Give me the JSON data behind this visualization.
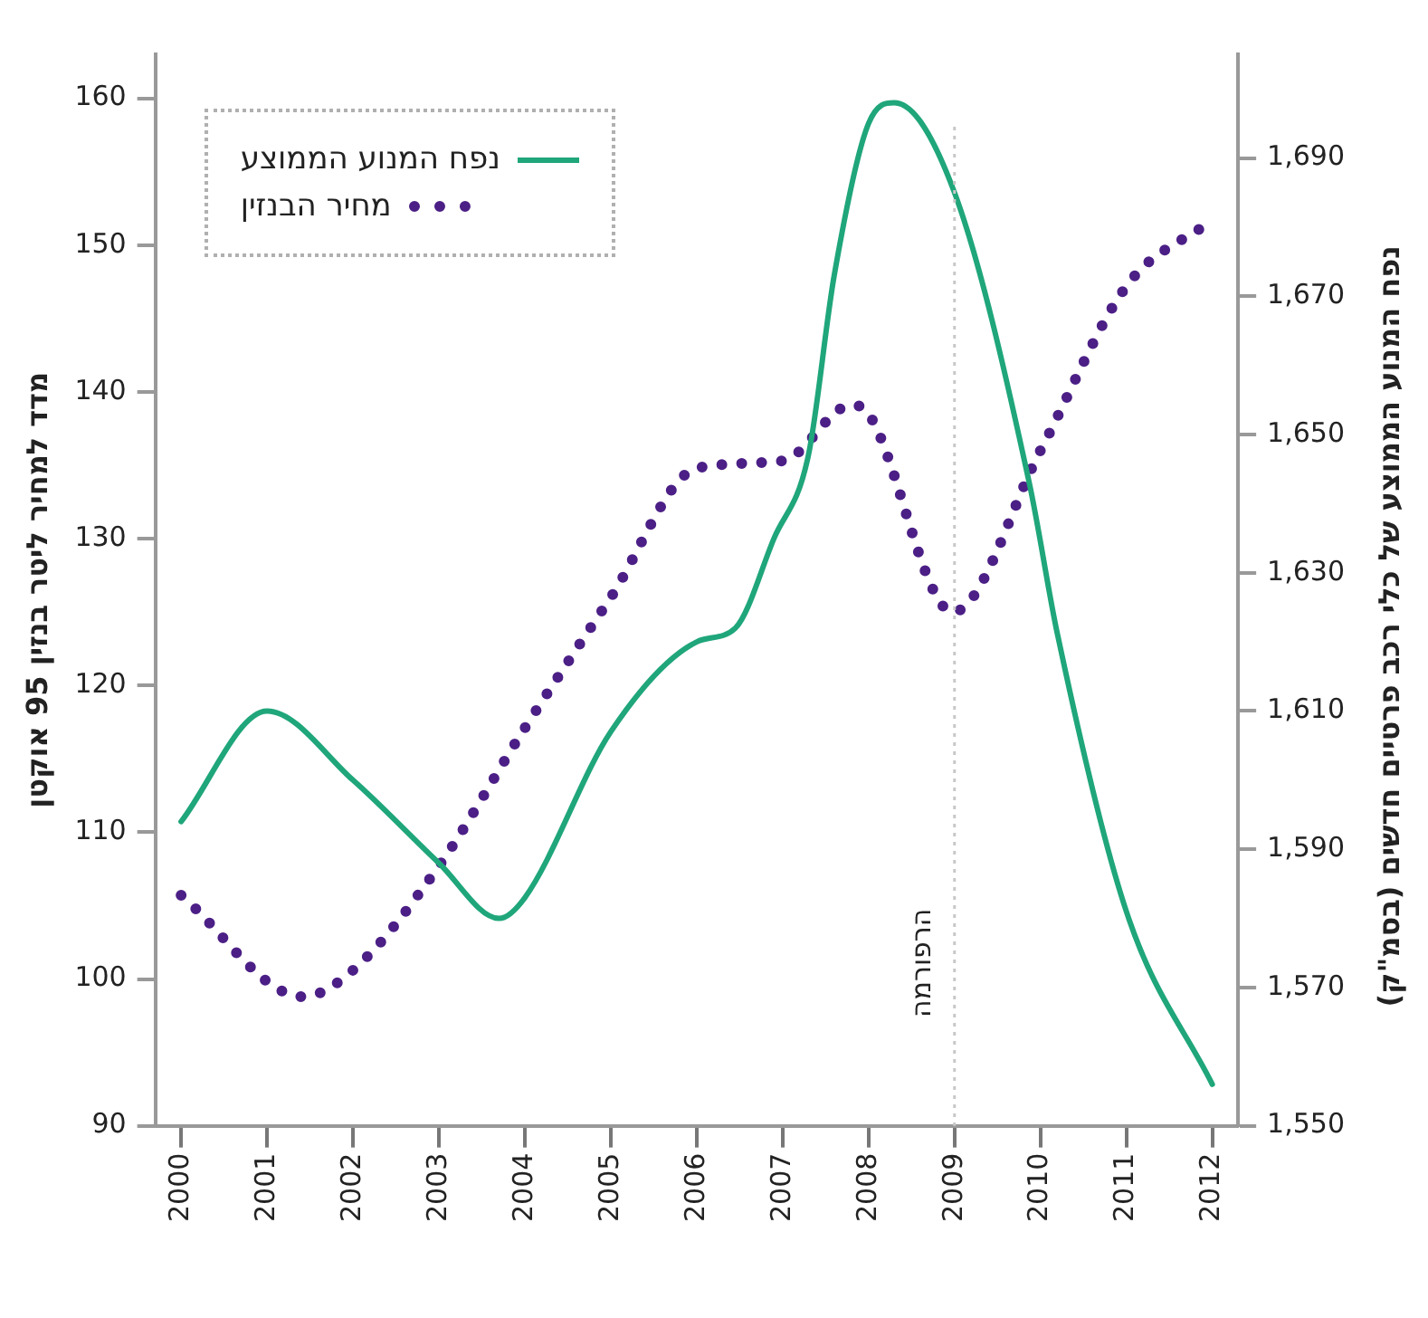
{
  "chart_data": {
    "type": "line",
    "ylabel": "מדד למחיר ליטר בנזין 95 אוקטן",
    "y2label": "נפח המנוע הממוצע של כלי רכב פרטיים חדשים (בסמ\"ק)",
    "xlim": [
      1999.7,
      2012.3
    ],
    "xticks": [
      2000,
      2001,
      2002,
      2003,
      2004,
      2005,
      2006,
      2007,
      2008,
      2009,
      2010,
      2011,
      2012
    ],
    "ylim": [
      90,
      163
    ],
    "yticks": [
      90,
      100,
      110,
      120,
      130,
      140,
      150,
      160
    ],
    "y2lim": [
      1550,
      1705
    ],
    "y2ticks": [
      {
        "value": 1550,
        "label": "1,550"
      },
      {
        "value": 1570,
        "label": "1,570"
      },
      {
        "value": 1590,
        "label": "1,590"
      },
      {
        "value": 1610,
        "label": "1,610"
      },
      {
        "value": 1630,
        "label": "1,630"
      },
      {
        "value": 1650,
        "label": "1,650"
      },
      {
        "value": 1670,
        "label": "1,670"
      },
      {
        "value": 1690,
        "label": "1,690"
      }
    ],
    "grid": false,
    "legend": "top left",
    "marker": "none",
    "ref_lines": [
      {
        "axis": "x",
        "value": 2009,
        "label": "הרפורמה",
        "color": "#c8c8c8",
        "line_style": "dotted"
      }
    ],
    "series": [
      {
        "name": "נפח המנוע הממוצע",
        "color": "#1fa67a",
        "axis": "y2",
        "line_style": "solid",
        "x": [
          2000,
          2001,
          2002,
          2003,
          2003.7,
          2004,
          2005,
          2006,
          2006.45,
          2006.9,
          2007.3,
          2007.6,
          2008,
          2008.3,
          2009,
          2009.87,
          2010.2,
          2011,
          2012
        ],
        "values": [
          1594,
          1610,
          1600,
          1588,
          1580,
          1583,
          1607,
          1620,
          1622,
          1635,
          1647,
          1673,
          1695,
          1698,
          1685,
          1643,
          1621,
          1581,
          1556
        ]
      },
      {
        "name": "מחיר הבנזין",
        "color": "#4b1f86",
        "line_style": "dotted",
        "x": [
          2000,
          2001.42,
          2002,
          2003,
          2004,
          2005,
          2006,
          2007,
          2007.8,
          2008,
          2008.98,
          2010,
          2011,
          2012
        ],
        "values": [
          105.7,
          98.8,
          100.6,
          107.7,
          117.1,
          126,
          134.8,
          135.3,
          139.1,
          138.5,
          125,
          136,
          147.2,
          151.7
        ]
      }
    ]
  }
}
